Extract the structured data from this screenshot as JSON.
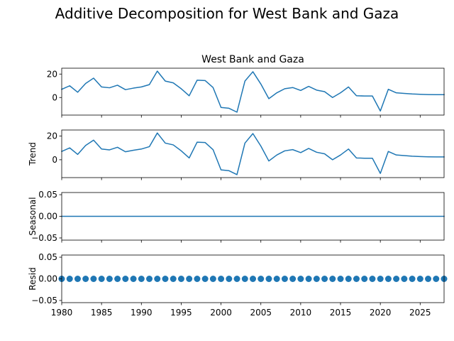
{
  "figure_title": "Additive Decomposition for West Bank and Gaza",
  "chart_data": [
    {
      "type": "line",
      "panel": "observed",
      "title": "West Bank and Gaza",
      "ylabel": "",
      "xlim": [
        1980,
        2028
      ],
      "ylim": [
        -15,
        25
      ],
      "yticks": [
        0,
        20
      ],
      "ytick_labels": [
        "0",
        "20"
      ],
      "x": [
        1980,
        1981,
        1982,
        1983,
        1984,
        1985,
        1986,
        1987,
        1988,
        1989,
        1990,
        1991,
        1992,
        1993,
        1994,
        1995,
        1996,
        1997,
        1998,
        1999,
        2000,
        2001,
        2002,
        2003,
        2004,
        2005,
        2006,
        2007,
        2008,
        2009,
        2010,
        2011,
        2012,
        2013,
        2014,
        2015,
        2016,
        2017,
        2018,
        2019,
        2020,
        2021,
        2022,
        2023,
        2024,
        2025,
        2026,
        2027,
        2028
      ],
      "values": [
        7,
        10,
        4.5,
        12,
        16.5,
        9,
        8.3,
        10.5,
        6.7,
        8,
        9,
        11,
        22.5,
        14,
        12.5,
        7.5,
        1.5,
        14.8,
        14.5,
        8.5,
        -8.5,
        -9.2,
        -12.5,
        14,
        22,
        11.5,
        -1,
        4,
        7.5,
        8.5,
        6,
        9.5,
        6.3,
        5,
        0,
        4,
        9,
        1.5,
        1.3,
        1.3,
        -11.5,
        7,
        4,
        3.5,
        3,
        2.7,
        2.5,
        2.4,
        2.4
      ]
    },
    {
      "type": "line",
      "panel": "trend",
      "title": "",
      "ylabel": "Trend",
      "xlim": [
        1980,
        2028
      ],
      "ylim": [
        -15,
        25
      ],
      "yticks": [
        0,
        20
      ],
      "ytick_labels": [
        "0",
        "20"
      ],
      "x": [
        1980,
        1981,
        1982,
        1983,
        1984,
        1985,
        1986,
        1987,
        1988,
        1989,
        1990,
        1991,
        1992,
        1993,
        1994,
        1995,
        1996,
        1997,
        1998,
        1999,
        2000,
        2001,
        2002,
        2003,
        2004,
        2005,
        2006,
        2007,
        2008,
        2009,
        2010,
        2011,
        2012,
        2013,
        2014,
        2015,
        2016,
        2017,
        2018,
        2019,
        2020,
        2021,
        2022,
        2023,
        2024,
        2025,
        2026,
        2027,
        2028
      ],
      "values": [
        7,
        10,
        4.5,
        12,
        16.5,
        9,
        8.3,
        10.5,
        6.7,
        8,
        9,
        11,
        22.5,
        14,
        12.5,
        7.5,
        1.5,
        14.8,
        14.5,
        8.5,
        -8.5,
        -9.2,
        -12.5,
        14,
        22,
        11.5,
        -1,
        4,
        7.5,
        8.5,
        6,
        9.5,
        6.3,
        5,
        0,
        4,
        9,
        1.5,
        1.3,
        1.3,
        -11.5,
        7,
        4,
        3.5,
        3,
        2.7,
        2.5,
        2.4,
        2.4
      ]
    },
    {
      "type": "line",
      "panel": "seasonal",
      "title": "",
      "ylabel": "Seasonal",
      "xlim": [
        1980,
        2028
      ],
      "ylim": [
        -0.055,
        0.055
      ],
      "yticks": [
        -0.05,
        0,
        0.05
      ],
      "ytick_labels": [
        "−0.05",
        "0.00",
        "0.05"
      ],
      "x": [
        1980,
        2028
      ],
      "values": [
        0,
        0
      ]
    },
    {
      "type": "scatter",
      "panel": "resid",
      "title": "",
      "ylabel": "Resid",
      "xlim": [
        1980,
        2028
      ],
      "ylim": [
        -0.055,
        0.055
      ],
      "yticks": [
        -0.05,
        0,
        0.05
      ],
      "ytick_labels": [
        "−0.05",
        "0.00",
        "0.05"
      ],
      "x": [
        1980,
        1981,
        1982,
        1983,
        1984,
        1985,
        1986,
        1987,
        1988,
        1989,
        1990,
        1991,
        1992,
        1993,
        1994,
        1995,
        1996,
        1997,
        1998,
        1999,
        2000,
        2001,
        2002,
        2003,
        2004,
        2005,
        2006,
        2007,
        2008,
        2009,
        2010,
        2011,
        2012,
        2013,
        2014,
        2015,
        2016,
        2017,
        2018,
        2019,
        2020,
        2021,
        2022,
        2023,
        2024,
        2025,
        2026,
        2027,
        2028
      ],
      "values": [
        0,
        0,
        0,
        0,
        0,
        0,
        0,
        0,
        0,
        0,
        0,
        0,
        0,
        0,
        0,
        0,
        0,
        0,
        0,
        0,
        0,
        0,
        0,
        0,
        0,
        0,
        0,
        0,
        0,
        0,
        0,
        0,
        0,
        0,
        0,
        0,
        0,
        0,
        0,
        0,
        0,
        0,
        0,
        0,
        0,
        0,
        0,
        0,
        0
      ],
      "xticks": [
        1980,
        1985,
        1990,
        1995,
        2000,
        2005,
        2010,
        2015,
        2020,
        2025
      ],
      "xtick_labels": [
        "1980",
        "1985",
        "1990",
        "1995",
        "2000",
        "2005",
        "2010",
        "2015",
        "2020",
        "2025"
      ]
    }
  ],
  "colors": {
    "line": "#1f77b4",
    "axis": "#000000"
  }
}
